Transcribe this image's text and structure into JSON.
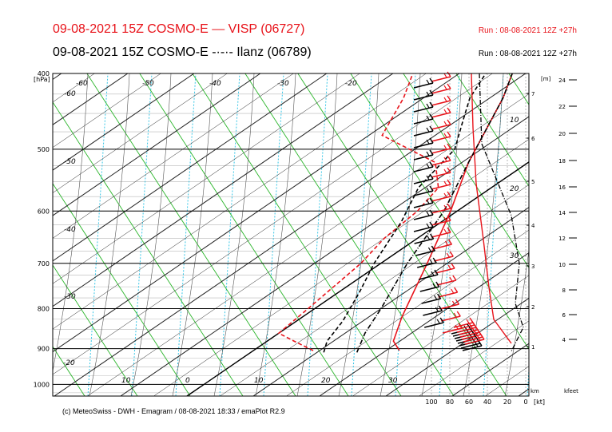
{
  "header": {
    "line1": "09-08-2021 15Z COSMO-E  — VISP (06727)",
    "line2": "09-08-2021 15Z COSMO-E  -·-·- Ilanz (06789)",
    "run1": "Run : 08-08-2021 12Z +27h",
    "run2": "Run : 08-08-2021 12Z +27h"
  },
  "footer": "(c) MeteoSwiss - DWH - Emagram / 08-08-2021 18:33 / emaPlot R2.9",
  "colors": {
    "visp": "#e8141b",
    "ilanz": "#000000",
    "dry_adiabat": "#2ab52a",
    "moist_adiabat": "#000000",
    "mixing_ratio": "#35c6e6"
  },
  "chart_data": {
    "type": "line",
    "title": "Emagram",
    "ylabel": "[hPa]",
    "pressure_ticks": [
      400,
      500,
      600,
      700,
      800,
      900,
      1000
    ],
    "isotherm_labels": [
      -60,
      -50,
      -40,
      -30,
      -20,
      -10,
      0,
      10,
      20,
      30
    ],
    "upper_temp_labels": [
      -60,
      -50,
      -40,
      -30,
      -20
    ],
    "height_m_label": "[m]",
    "height_km_ticks": [
      1,
      2,
      3,
      4,
      5,
      6,
      7
    ],
    "height_km_label": "km",
    "height_kfeet_ticks": [
      4,
      6,
      8,
      10,
      12,
      14,
      16,
      18,
      20,
      22,
      24
    ],
    "height_kfeet_label": "kfeet",
    "wind_kt_ticks": [
      100,
      80,
      60,
      40,
      20,
      0
    ],
    "wind_kt_label": "[kt]",
    "right_scale_labels": [
      10,
      20,
      30
    ],
    "series": [
      {
        "name": "VISP (06727) temperature",
        "p": [
          905,
          880,
          820,
          700,
          600,
          520,
          430,
          400
        ],
        "t": [
          22,
          19,
          15,
          7,
          -1,
          -9,
          -18,
          -22
        ]
      },
      {
        "name": "VISP (06727) dewpoint",
        "p": [
          905,
          880,
          860,
          800,
          700,
          650,
          600,
          560,
          520,
          480,
          430,
          400
        ],
        "t": [
          9,
          4,
          0,
          -1,
          -3,
          -5,
          -6,
          -8,
          -14,
          -28,
          -33,
          -37
        ]
      },
      {
        "name": "Ilanz (06789) temperature",
        "p": [
          910,
          860,
          800,
          700,
          600,
          520,
          430,
          400
        ],
        "t": [
          16,
          13,
          10,
          4,
          -2,
          -9,
          -18,
          -22
        ]
      },
      {
        "name": "Ilanz (06789) dewpoint",
        "p": [
          910,
          880,
          830,
          760,
          700,
          620,
          560,
          500,
          460,
          430,
          400
        ],
        "t": [
          11,
          9,
          7,
          3,
          -1,
          -6,
          -11,
          -14,
          -19,
          -23,
          -26
        ]
      }
    ]
  }
}
